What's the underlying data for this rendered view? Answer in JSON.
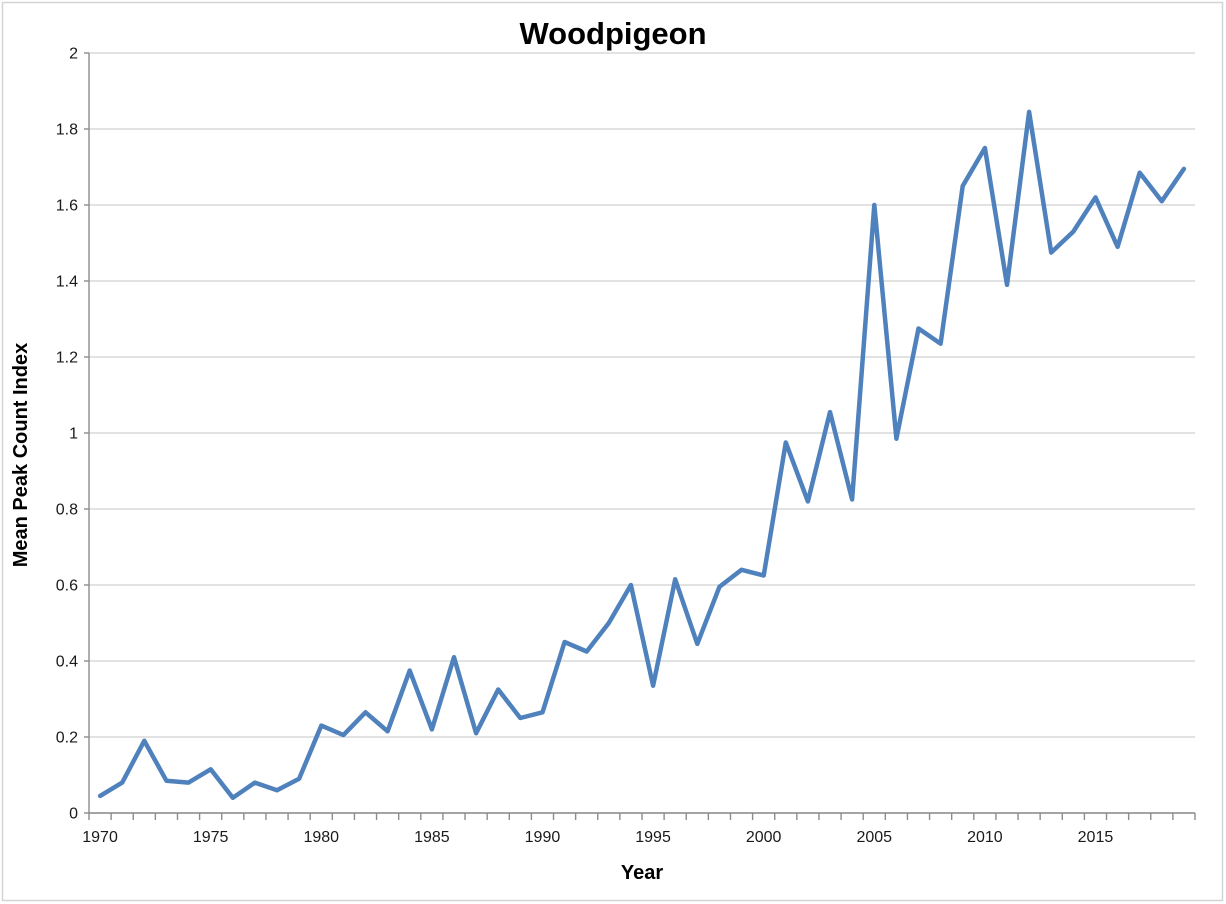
{
  "chart_data": {
    "type": "line",
    "title": "Woodpigeon",
    "xlabel": "Year",
    "ylabel": "Mean Peak Count Index",
    "x": [
      1970,
      1971,
      1972,
      1973,
      1974,
      1975,
      1976,
      1977,
      1978,
      1979,
      1980,
      1981,
      1982,
      1983,
      1984,
      1985,
      1986,
      1987,
      1988,
      1989,
      1990,
      1991,
      1992,
      1993,
      1994,
      1995,
      1996,
      1997,
      1998,
      1999,
      2000,
      2001,
      2002,
      2003,
      2004,
      2005,
      2006,
      2007,
      2008,
      2009,
      2010,
      2011,
      2012,
      2013,
      2014,
      2015,
      2016,
      2017,
      2018,
      2019
    ],
    "values": [
      0.045,
      0.08,
      0.19,
      0.085,
      0.08,
      0.115,
      0.04,
      0.08,
      0.06,
      0.09,
      0.23,
      0.205,
      0.265,
      0.215,
      0.375,
      0.22,
      0.41,
      0.21,
      0.325,
      0.25,
      0.265,
      0.45,
      0.425,
      0.5,
      0.6,
      0.335,
      0.615,
      0.445,
      0.595,
      0.64,
      0.625,
      0.975,
      0.82,
      1.055,
      0.825,
      1.6,
      0.985,
      1.275,
      1.235,
      1.65,
      1.75,
      1.39,
      1.845,
      1.475,
      1.53,
      1.62,
      1.49,
      1.685,
      1.61,
      1.695
    ],
    "ylim": [
      0,
      2
    ],
    "ytick_labels": [
      "0",
      "0.2",
      "0.4",
      "0.6",
      "0.8",
      "1",
      "1.2",
      "1.4",
      "1.6",
      "1.8",
      "2"
    ],
    "ytick_values": [
      0,
      0.2,
      0.4,
      0.6,
      0.8,
      1,
      1.2,
      1.4,
      1.6,
      1.8,
      2
    ],
    "xtick_label_years": [
      1970,
      1975,
      1980,
      1985,
      1990,
      1995,
      2000,
      2005,
      2010,
      2015
    ],
    "grid": "horizontal gridlines on",
    "legend": "none",
    "line_color": "#4F81BD",
    "gridline_color": "#D9D9D9",
    "axis_color": "#8C8C8C",
    "border_color": "#D4D4D4",
    "text_color": "#000000"
  }
}
